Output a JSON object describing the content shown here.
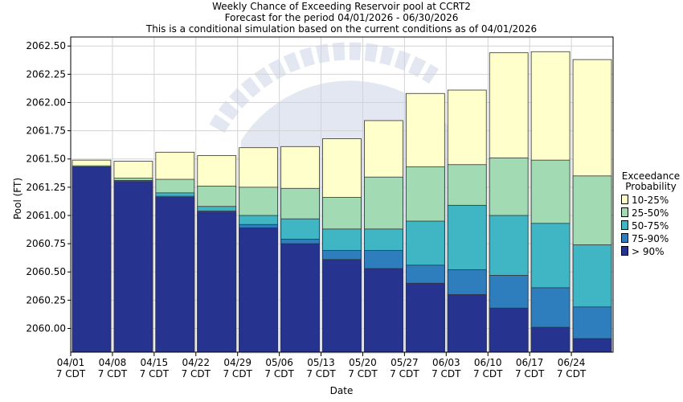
{
  "chart_data": {
    "type": "bar",
    "title": "Weekly Chance of Exceeding Reservoir pool at CCRT2",
    "subtitle": "Forecast for the period 04/01/2026 - 06/30/2026",
    "subtitle2": "This is a conditional simulation based on the current conditions as of 04/01/2026",
    "xlabel": "Date",
    "ylabel": "Pool (FT)",
    "ylim": [
      2059.79,
      2062.58
    ],
    "yticks": [
      "2060.00",
      "2060.25",
      "2060.50",
      "2060.75",
      "2061.00",
      "2061.25",
      "2061.50",
      "2061.75",
      "2062.00",
      "2062.25",
      "2062.50"
    ],
    "ytick_values": [
      2060.0,
      2060.25,
      2060.5,
      2060.75,
      2061.0,
      2061.25,
      2061.5,
      2061.75,
      2062.0,
      2062.25,
      2062.5
    ],
    "xticks": [
      {
        "date": "04/01",
        "tz": "7 CDT"
      },
      {
        "date": "04/08",
        "tz": "7 CDT"
      },
      {
        "date": "04/15",
        "tz": "7 CDT"
      },
      {
        "date": "04/22",
        "tz": "7 CDT"
      },
      {
        "date": "04/29",
        "tz": "7 CDT"
      },
      {
        "date": "05/06",
        "tz": "7 CDT"
      },
      {
        "date": "05/13",
        "tz": "7 CDT"
      },
      {
        "date": "05/20",
        "tz": "7 CDT"
      },
      {
        "date": "05/27",
        "tz": "7 CDT"
      },
      {
        "date": "06/03",
        "tz": "7 CDT"
      },
      {
        "date": "06/10",
        "tz": "7 CDT"
      },
      {
        "date": "06/17",
        "tz": "7 CDT"
      },
      {
        "date": "06/24",
        "tz": "7 CDT"
      }
    ],
    "legend": {
      "title_line1": "Exceedance",
      "title_line2": "Probability",
      "placement": "right"
    },
    "series": [
      {
        "name": "> 90%",
        "color": "#26338f",
        "values": [
          2061.43,
          2061.3,
          2061.16,
          2061.03,
          2060.89,
          2060.75,
          2060.61,
          2060.53,
          2060.4,
          2060.3,
          2060.18,
          2060.01,
          2059.91
        ]
      },
      {
        "name": "75-90%",
        "color": "#2e7dbc",
        "values": [
          2061.43,
          2061.31,
          2061.17,
          2061.04,
          2060.92,
          2060.79,
          2060.69,
          2060.69,
          2060.56,
          2060.52,
          2060.47,
          2060.36,
          2060.19
        ]
      },
      {
        "name": "50-75%",
        "color": "#40b5c4",
        "values": [
          2061.43,
          2061.31,
          2061.2,
          2061.08,
          2061.0,
          2060.97,
          2060.88,
          2060.88,
          2060.95,
          2061.09,
          2061.0,
          2060.93,
          2060.74
        ]
      },
      {
        "name": "25-50%",
        "color": "#a2dab4",
        "values": [
          2061.44,
          2061.33,
          2061.32,
          2061.26,
          2061.25,
          2061.24,
          2061.16,
          2061.34,
          2061.43,
          2061.45,
          2061.51,
          2061.49,
          2061.35
        ]
      },
      {
        "name": "10-25%",
        "color": "#ffffcc",
        "values": [
          2061.49,
          2061.48,
          2061.56,
          2061.53,
          2061.6,
          2061.61,
          2061.68,
          2061.84,
          2062.08,
          2062.11,
          2062.44,
          2062.45,
          2062.38
        ]
      }
    ],
    "grid": true
  }
}
